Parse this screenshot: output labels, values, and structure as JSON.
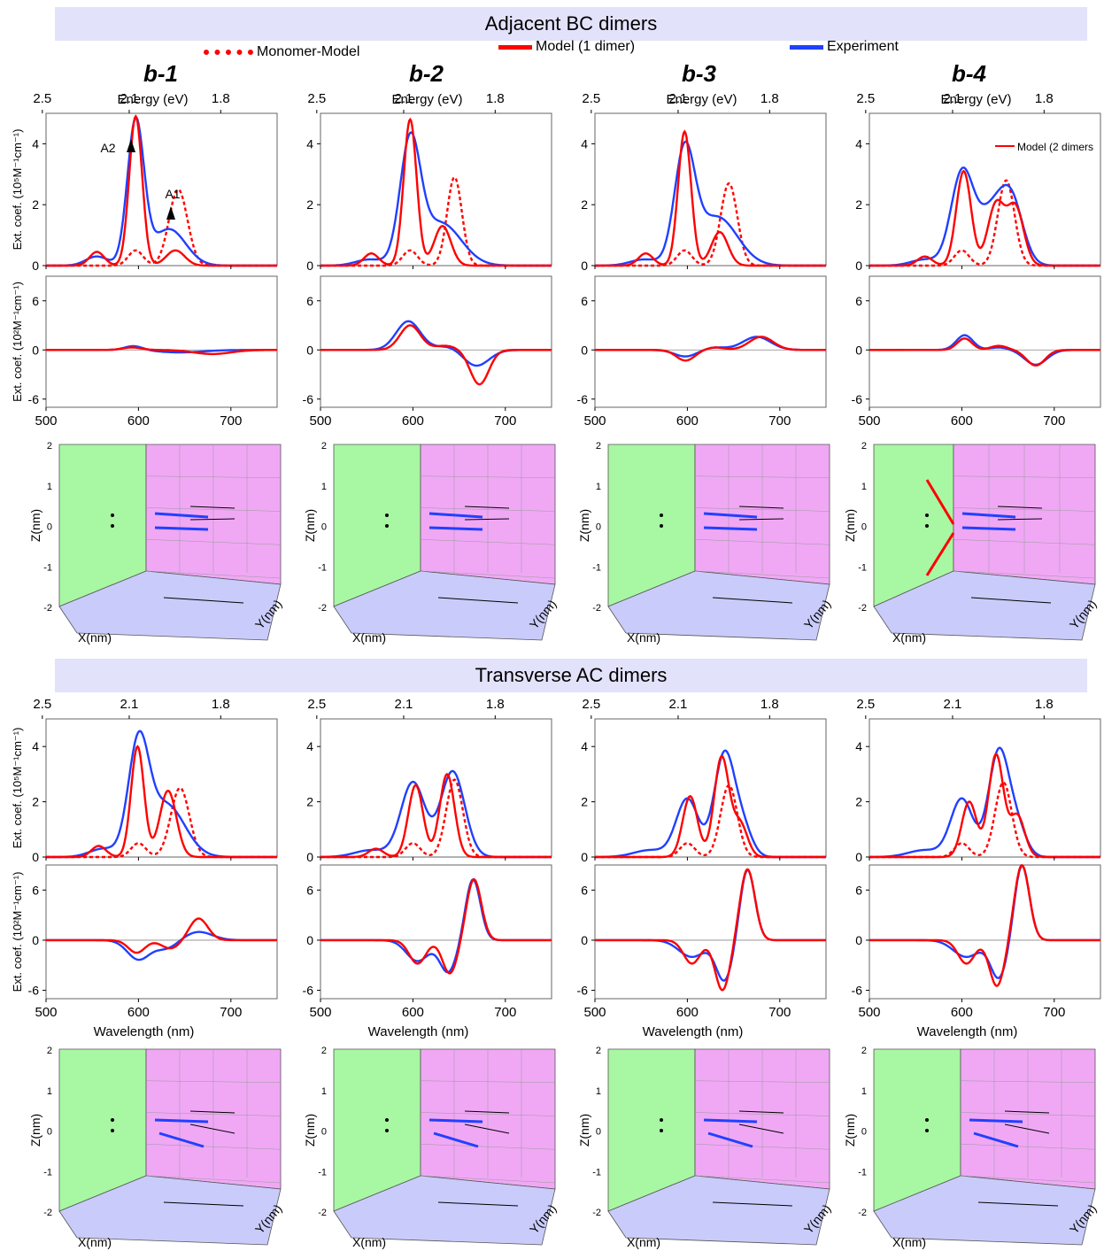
{
  "sections": [
    {
      "title": "Adjacent BC dimers"
    },
    {
      "title": "Transverse AC dimers"
    }
  ],
  "legend": {
    "monomer": {
      "label": "Monomer-Model",
      "color": "#ff0000",
      "style": "dotted"
    },
    "model": {
      "label": "Model (1 dimer)",
      "color": "#ff0000",
      "style": "solid"
    },
    "experiment": {
      "label": "Experiment",
      "color": "#2040ff",
      "style": "solid"
    }
  },
  "panel_titles": [
    "b-1",
    "b-2",
    "b-3",
    "b-4"
  ],
  "extra_labels": {
    "model2": "Model (2 dimers",
    "peak_a2": "A2",
    "peak_a1": "A1"
  },
  "axis_text": {
    "energy": "Energy (eV)",
    "energy_ticks": [
      "2.5",
      "2.1",
      "1.8"
    ],
    "wavelength": "Wavelength (nm)",
    "wl_ticks": [
      "500",
      "600",
      "700"
    ],
    "abs_ylabel": "Ext. coef. (10⁵M⁻¹cm⁻¹)",
    "cd_ylabel": "Ext. coef. (10²M⁻¹cm⁻¹)",
    "abs_yticks": [
      "0",
      "2",
      "4"
    ],
    "cd_yticks": [
      "-6",
      "0",
      "6"
    ],
    "xyz_z": "Z(nm)",
    "xyz_x": "X(nm)",
    "xyz_y": "Y(nm)",
    "z_ticks": [
      "-2",
      "-1",
      "0",
      "1",
      "2"
    ]
  },
  "colors": {
    "green_wall": "#a8f7a3",
    "pink_wall": "#f0a8f5",
    "floor": "#c9ccfa",
    "blue": "#2040ff",
    "red": "#ff0000"
  },
  "chart_data": [
    {
      "section": "Adjacent BC dimers",
      "panel": "b-1",
      "type": "line",
      "xlabel": "",
      "ylabel": "Ext. coef. (10⁵M⁻¹cm⁻¹)",
      "xlim": [
        500,
        750
      ],
      "ylim": [
        0,
        5
      ],
      "peaks": {
        "experiment": [
          [
            555,
            0.3,
            12
          ],
          [
            597,
            4.7,
            9
          ],
          [
            633,
            1.2,
            18
          ]
        ],
        "model": [
          [
            555,
            0.45,
            8
          ],
          [
            597,
            4.9,
            7
          ],
          [
            640,
            0.5,
            10
          ]
        ],
        "monomer": [
          [
            597,
            0.5,
            8
          ],
          [
            643,
            2.5,
            10
          ]
        ]
      },
      "annotations": [
        "A2",
        "A1"
      ]
    },
    {
      "section": "Adjacent BC dimers",
      "panel": "b-1",
      "type": "line",
      "ylabel": "Ext. coef. (10²M⁻¹cm⁻¹)",
      "xlim": [
        500,
        750
      ],
      "ylim": [
        -7,
        9
      ],
      "peaks": {
        "experiment": [
          [
            595,
            0.5,
            10
          ],
          [
            645,
            -0.3,
            25
          ]
        ],
        "model": [
          [
            593,
            0.3,
            10
          ],
          [
            680,
            -0.5,
            20
          ]
        ]
      }
    },
    {
      "section": "Adjacent BC dimers",
      "panel": "b-2",
      "type": "line",
      "ylabel": "Ext. coef. (10⁵M⁻¹cm⁻¹)",
      "xlim": [
        500,
        750
      ],
      "ylim": [
        0,
        5
      ],
      "peaks": {
        "experiment": [
          [
            553,
            0.2,
            15
          ],
          [
            597,
            3.9,
            11
          ],
          [
            630,
            1.4,
            22
          ]
        ],
        "model": [
          [
            555,
            0.4,
            8
          ],
          [
            597,
            4.8,
            7
          ],
          [
            632,
            1.3,
            9
          ]
        ],
        "monomer": [
          [
            597,
            0.5,
            8
          ],
          [
            645,
            2.9,
            8
          ]
        ]
      }
    },
    {
      "section": "Adjacent BC dimers",
      "panel": "b-2",
      "type": "line",
      "ylabel": "Ext. coef. (10²M⁻¹cm⁻¹)",
      "xlim": [
        500,
        750
      ],
      "ylim": [
        -7,
        9
      ],
      "peaks": {
        "experiment": [
          [
            595,
            3.5,
            13
          ],
          [
            640,
            0.5,
            15
          ],
          [
            668,
            -2.0,
            14
          ]
        ],
        "model": [
          [
            597,
            3.0,
            11
          ],
          [
            635,
            0.5,
            12
          ],
          [
            672,
            -4.2,
            10
          ]
        ]
      }
    },
    {
      "section": "Adjacent BC dimers",
      "panel": "b-3",
      "type": "line",
      "ylabel": "Ext. coef. (10⁵M⁻¹cm⁻¹)",
      "xlim": [
        500,
        750
      ],
      "ylim": [
        0,
        5
      ],
      "peaks": {
        "experiment": [
          [
            553,
            0.2,
            15
          ],
          [
            597,
            3.6,
            11
          ],
          [
            632,
            1.6,
            22
          ]
        ],
        "model": [
          [
            555,
            0.4,
            8
          ],
          [
            597,
            4.4,
            7
          ],
          [
            635,
            1.1,
            9
          ]
        ],
        "monomer": [
          [
            597,
            0.5,
            8
          ],
          [
            645,
            2.7,
            9
          ]
        ]
      }
    },
    {
      "section": "Adjacent BC dimers",
      "panel": "b-3",
      "type": "line",
      "ylabel": "Ext. coef. (10²M⁻¹cm⁻¹)",
      "xlim": [
        500,
        750
      ],
      "ylim": [
        -7,
        9
      ],
      "peaks": {
        "experiment": [
          [
            598,
            -0.8,
            12
          ],
          [
            630,
            0.3,
            12
          ],
          [
            675,
            1.6,
            15
          ]
        ],
        "model": [
          [
            598,
            -1.3,
            10
          ],
          [
            630,
            0.3,
            10
          ],
          [
            680,
            1.6,
            13
          ]
        ]
      }
    },
    {
      "section": "Adjacent BC dimers",
      "panel": "b-4",
      "type": "line",
      "ylabel": "Ext. coef. (10⁵M⁻¹cm⁻¹)",
      "xlim": [
        500,
        750
      ],
      "ylim": [
        0,
        5
      ],
      "peaks": {
        "experiment": [
          [
            560,
            0.2,
            15
          ],
          [
            600,
            2.9,
            12
          ],
          [
            635,
            1.9,
            18
          ],
          [
            655,
            1.4,
            12
          ]
        ],
        "model": [
          [
            560,
            0.3,
            8
          ],
          [
            602,
            3.1,
            8
          ],
          [
            637,
            2.0,
            9
          ],
          [
            658,
            1.9,
            9
          ]
        ],
        "monomer": [
          [
            600,
            0.5,
            8
          ],
          [
            648,
            2.8,
            9
          ]
        ]
      },
      "annotations": [
        "Model (2 dimers"
      ]
    },
    {
      "section": "Adjacent BC dimers",
      "panel": "b-4",
      "type": "line",
      "ylabel": "Ext. coef. (10²M⁻¹cm⁻¹)",
      "xlim": [
        500,
        750
      ],
      "ylim": [
        -7,
        9
      ],
      "peaks": {
        "experiment": [
          [
            603,
            1.8,
            9
          ],
          [
            640,
            0.3,
            10
          ],
          [
            680,
            -1.8,
            12
          ]
        ],
        "model": [
          [
            603,
            1.4,
            8
          ],
          [
            640,
            0.5,
            9
          ],
          [
            680,
            -1.9,
            10
          ]
        ]
      }
    },
    {
      "section": "Transverse AC dimers",
      "panel": "b-1",
      "type": "line",
      "ylabel": "Ext. coef. (10⁵M⁻¹cm⁻¹)",
      "xlim": [
        500,
        750
      ],
      "ylim": [
        0,
        5
      ],
      "peaks": {
        "experiment": [
          [
            562,
            0.3,
            15
          ],
          [
            600,
            3.9,
            11
          ],
          [
            630,
            1.9,
            20
          ]
        ],
        "model": [
          [
            557,
            0.4,
            8
          ],
          [
            599,
            4.0,
            7
          ],
          [
            632,
            2.4,
            9
          ]
        ],
        "monomer": [
          [
            600,
            0.5,
            8
          ],
          [
            645,
            2.5,
            10
          ]
        ]
      }
    },
    {
      "section": "Transverse AC dimers",
      "panel": "b-1",
      "type": "line",
      "ylabel": "Ext. coef. (10²M⁻¹cm⁻¹)",
      "xlim": [
        500,
        750
      ],
      "ylim": [
        -7,
        9
      ],
      "peaks": {
        "experiment": [
          [
            600,
            -2.3,
            12
          ],
          [
            630,
            -1.0,
            12
          ],
          [
            665,
            1.0,
            15
          ]
        ],
        "model": [
          [
            598,
            -1.5,
            9
          ],
          [
            635,
            -1.0,
            10
          ],
          [
            665,
            2.6,
            10
          ]
        ]
      }
    },
    {
      "section": "Transverse AC dimers",
      "panel": "b-2",
      "type": "line",
      "ylabel": "Ext. coef. (10⁵M⁻¹cm⁻¹)",
      "xlim": [
        500,
        750
      ],
      "ylim": [
        0,
        5
      ],
      "peaks": {
        "experiment": [
          [
            555,
            0.25,
            18
          ],
          [
            600,
            2.7,
            13
          ],
          [
            643,
            3.1,
            13
          ]
        ],
        "model": [
          [
            560,
            0.3,
            8
          ],
          [
            603,
            2.6,
            8
          ],
          [
            637,
            3.0,
            8
          ]
        ],
        "monomer": [
          [
            600,
            0.5,
            8
          ],
          [
            645,
            2.8,
            9
          ]
        ]
      }
    },
    {
      "section": "Transverse AC dimers",
      "panel": "b-2",
      "type": "line",
      "ylabel": "Ext. coef. (10²M⁻¹cm⁻¹)",
      "xlim": [
        500,
        750
      ],
      "ylim": [
        -7,
        9
      ],
      "peaks": {
        "experiment": [
          [
            605,
            -2.5,
            12
          ],
          [
            638,
            -3.8,
            9
          ],
          [
            665,
            7.3,
            8
          ]
        ],
        "model": [
          [
            605,
            -2.8,
            9
          ],
          [
            640,
            -4.0,
            8
          ],
          [
            666,
            7.3,
            8
          ]
        ]
      }
    },
    {
      "section": "Transverse AC dimers",
      "panel": "b-3",
      "type": "line",
      "ylabel": "Ext. coef. (10⁵M⁻¹cm⁻¹)",
      "xlim": [
        500,
        750
      ],
      "ylim": [
        0,
        5
      ],
      "peaks": {
        "experiment": [
          [
            560,
            0.25,
            18
          ],
          [
            600,
            2.1,
            12
          ],
          [
            640,
            3.7,
            11
          ],
          [
            660,
            1.0,
            10
          ]
        ],
        "model": [
          [
            603,
            2.2,
            8
          ],
          [
            637,
            3.6,
            8
          ],
          [
            657,
            1.2,
            8
          ]
        ],
        "monomer": [
          [
            600,
            0.5,
            8
          ],
          [
            645,
            2.6,
            9
          ]
        ]
      }
    },
    {
      "section": "Transverse AC dimers",
      "panel": "b-3",
      "type": "line",
      "ylabel": "Ext. coef. (10²M⁻¹cm⁻¹)",
      "xlim": [
        500,
        750
      ],
      "ylim": [
        -7,
        9
      ],
      "peaks": {
        "experiment": [
          [
            605,
            -2.0,
            14
          ],
          [
            640,
            -4.8,
            9
          ],
          [
            665,
            8.5,
            8
          ]
        ],
        "model": [
          [
            605,
            -2.8,
            9
          ],
          [
            638,
            -6.0,
            8
          ],
          [
            665,
            8.5,
            8
          ]
        ]
      }
    },
    {
      "section": "Transverse AC dimers",
      "panel": "b-4",
      "type": "line",
      "ylabel": "Ext. coef. (10⁵M⁻¹cm⁻¹)",
      "xlim": [
        500,
        750
      ],
      "ylim": [
        0,
        5
      ],
      "peaks": {
        "experiment": [
          [
            560,
            0.25,
            18
          ],
          [
            600,
            2.1,
            12
          ],
          [
            640,
            3.8,
            11
          ],
          [
            660,
            1.0,
            10
          ]
        ],
        "model": [
          [
            608,
            2.0,
            8
          ],
          [
            637,
            3.7,
            8
          ],
          [
            660,
            1.5,
            8
          ]
        ],
        "monomer": [
          [
            600,
            0.5,
            8
          ],
          [
            645,
            2.7,
            9
          ]
        ]
      }
    },
    {
      "section": "Transverse AC dimers",
      "panel": "b-4",
      "type": "line",
      "ylabel": "Ext. coef. (10²M⁻¹cm⁻¹)",
      "xlim": [
        500,
        750
      ],
      "ylim": [
        -7,
        9
      ],
      "peaks": {
        "experiment": [
          [
            605,
            -2.0,
            14
          ],
          [
            640,
            -4.5,
            9
          ],
          [
            665,
            9.0,
            8
          ]
        ],
        "model": [
          [
            605,
            -2.8,
            9
          ],
          [
            638,
            -5.5,
            8
          ],
          [
            665,
            9.0,
            8
          ]
        ]
      }
    }
  ]
}
